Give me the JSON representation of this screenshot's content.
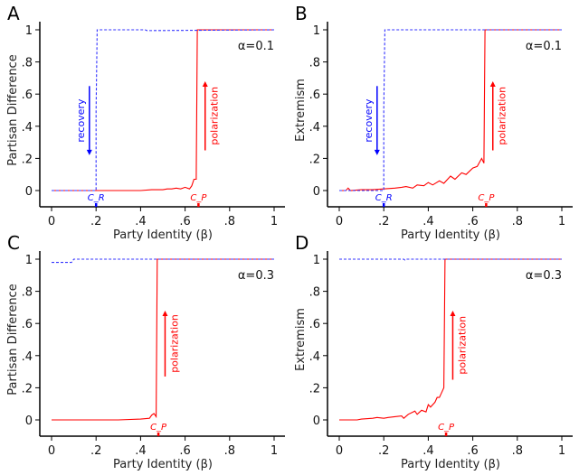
{
  "chart_data": [
    {
      "panel": "A",
      "type": "line",
      "ylabel": "Partisan Difference",
      "xlabel": "Party Identity (β)",
      "annotation": "α=0.1",
      "xlim": [
        0,
        1
      ],
      "ylim": [
        0,
        1
      ],
      "xticks": [
        "0",
        ".2",
        ".4",
        ".6",
        ".8",
        "1"
      ],
      "yticks": [
        "0",
        ".2",
        ".4",
        ".6",
        ".8",
        "1"
      ],
      "series": [
        {
          "name": "recovery",
          "color": "#3333ff",
          "dashed": true,
          "x": [
            0,
            0.2,
            0.2,
            0.205,
            0.42,
            0.43,
            1
          ],
          "y": [
            0,
            0,
            0.5,
            1,
            1,
            0.995,
            1
          ]
        },
        {
          "name": "polarization",
          "color": "#ff0000",
          "dashed": false,
          "x": [
            0,
            0.4,
            0.45,
            0.5,
            0.52,
            0.54,
            0.56,
            0.58,
            0.6,
            0.62,
            0.63,
            0.64,
            0.65,
            0.655,
            0.66,
            1
          ],
          "y": [
            0,
            0,
            0.005,
            0.005,
            0.01,
            0.01,
            0.015,
            0.01,
            0.02,
            0.01,
            0.03,
            0.07,
            0.07,
            1,
            1,
            1
          ]
        }
      ],
      "arrows": [
        {
          "label": "recovery",
          "color": "#0000ff",
          "x": 0.17,
          "from": 0.65,
          "to": 0.22
        },
        {
          "label": "polarization",
          "color": "#ff0000",
          "x": 0.69,
          "from": 0.25,
          "to": 0.68
        }
      ],
      "thresholds": [
        {
          "label": "C_R",
          "sub": "R",
          "color": "#0000ff",
          "x": 0.2
        },
        {
          "label": "C_P",
          "sub": "P",
          "color": "#ff0000",
          "x": 0.66
        }
      ]
    },
    {
      "panel": "B",
      "type": "line",
      "ylabel": "Extremism",
      "xlabel": "Party Identity (β)",
      "annotation": "α=0.1",
      "xlim": [
        0,
        1
      ],
      "ylim": [
        0,
        1
      ],
      "xticks": [
        "0",
        ".2",
        ".4",
        ".6",
        ".8",
        "1"
      ],
      "yticks": [
        "0",
        ".2",
        ".4",
        ".6",
        ".8",
        "1"
      ],
      "series": [
        {
          "name": "recovery",
          "color": "#3333ff",
          "dashed": true,
          "x": [
            0,
            0.2,
            0.2,
            0.205,
            1
          ],
          "y": [
            0,
            0,
            0.5,
            1,
            1
          ]
        },
        {
          "name": "polarization",
          "color": "#ff0000",
          "dashed": false,
          "x": [
            0,
            0.03,
            0.04,
            0.05,
            0.1,
            0.15,
            0.2,
            0.25,
            0.28,
            0.3,
            0.33,
            0.35,
            0.38,
            0.4,
            0.42,
            0.45,
            0.47,
            0.5,
            0.52,
            0.55,
            0.57,
            0.6,
            0.62,
            0.64,
            0.65,
            0.655,
            0.66,
            1
          ],
          "y": [
            0,
            0,
            0.015,
            0,
            0.005,
            0.005,
            0.01,
            0.015,
            0.02,
            0.025,
            0.015,
            0.035,
            0.03,
            0.05,
            0.035,
            0.06,
            0.045,
            0.09,
            0.07,
            0.11,
            0.1,
            0.14,
            0.15,
            0.2,
            0.17,
            1,
            1,
            1
          ]
        }
      ],
      "arrows": [
        {
          "label": "recovery",
          "color": "#0000ff",
          "x": 0.17,
          "from": 0.65,
          "to": 0.22
        },
        {
          "label": "polarization",
          "color": "#ff0000",
          "x": 0.69,
          "from": 0.25,
          "to": 0.68
        }
      ],
      "thresholds": [
        {
          "label": "C_R",
          "sub": "R",
          "color": "#0000ff",
          "x": 0.2
        },
        {
          "label": "C_P",
          "sub": "P",
          "color": "#ff0000",
          "x": 0.66
        }
      ]
    },
    {
      "panel": "C",
      "type": "line",
      "ylabel": "Partisan Difference",
      "xlabel": "Party Identity (β)",
      "annotation": "α=0.3",
      "xlim": [
        0,
        1
      ],
      "ylim": [
        0,
        1
      ],
      "xticks": [
        "0",
        ".2",
        ".4",
        ".6",
        ".8",
        "1"
      ],
      "yticks": [
        "0",
        ".2",
        ".4",
        ".6",
        ".8",
        "1"
      ],
      "series": [
        {
          "name": "recovery",
          "color": "#3333ff",
          "dashed": true,
          "x": [
            0,
            0.09,
            0.1,
            1
          ],
          "y": [
            0.98,
            0.98,
            1,
            1
          ]
        },
        {
          "name": "polarization",
          "color": "#ff0000",
          "dashed": false,
          "x": [
            0,
            0.3,
            0.4,
            0.44,
            0.45,
            0.46,
            0.47,
            0.475,
            0.48,
            1
          ],
          "y": [
            0,
            0,
            0.005,
            0.01,
            0.03,
            0.04,
            0.02,
            1,
            1,
            1
          ]
        }
      ],
      "arrows": [
        {
          "label": "polarization",
          "color": "#ff0000",
          "x": 0.51,
          "from": 0.27,
          "to": 0.68
        }
      ],
      "thresholds": [
        {
          "label": "C_P",
          "sub": "P",
          "color": "#ff0000",
          "x": 0.48
        }
      ]
    },
    {
      "panel": "D",
      "type": "line",
      "ylabel": "Extremism",
      "xlabel": "Party Identity (β)",
      "annotation": "α=0.3",
      "xlim": [
        0,
        1
      ],
      "ylim": [
        0,
        1
      ],
      "xticks": [
        "0",
        ".2",
        ".4",
        ".6",
        ".8",
        "1"
      ],
      "yticks": [
        "0",
        ".2",
        ".4",
        ".6",
        ".8",
        "1"
      ],
      "series": [
        {
          "name": "recovery",
          "color": "#3333ff",
          "dashed": true,
          "x": [
            0,
            0.29,
            0.295,
            0.3,
            1
          ],
          "y": [
            1,
            1,
            0.995,
            1,
            1
          ]
        },
        {
          "name": "polarization",
          "color": "#ff0000",
          "dashed": false,
          "x": [
            0,
            0.08,
            0.1,
            0.15,
            0.17,
            0.2,
            0.22,
            0.25,
            0.28,
            0.29,
            0.31,
            0.34,
            0.35,
            0.37,
            0.39,
            0.4,
            0.41,
            0.43,
            0.44,
            0.45,
            0.46,
            0.47,
            0.475,
            0.48,
            1
          ],
          "y": [
            0,
            0,
            0.005,
            0.01,
            0.015,
            0.01,
            0.015,
            0.02,
            0.025,
            0.01,
            0.035,
            0.055,
            0.035,
            0.06,
            0.05,
            0.095,
            0.08,
            0.11,
            0.14,
            0.14,
            0.17,
            0.2,
            1,
            1,
            1
          ]
        }
      ],
      "arrows": [
        {
          "label": "polarization",
          "color": "#ff0000",
          "x": 0.51,
          "from": 0.25,
          "to": 0.68
        }
      ],
      "thresholds": [
        {
          "label": "C_P",
          "sub": "P",
          "color": "#ff0000",
          "x": 0.48
        }
      ]
    }
  ]
}
